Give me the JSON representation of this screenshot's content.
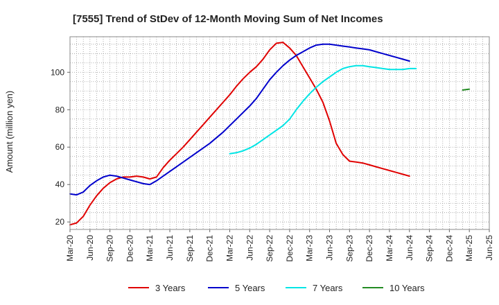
{
  "chart_data": {
    "type": "line",
    "title": "[7555]  Trend of StDev of 12-Month Moving Sum of Net Incomes",
    "ylabel": "Amount (million yen)",
    "xlabel": "",
    "ylim": [
      16,
      119
    ],
    "yticks": [
      20,
      40,
      60,
      80,
      100
    ],
    "xticks": [
      "Mar-20",
      "Jun-20",
      "Sep-20",
      "Dec-20",
      "Mar-21",
      "Jun-21",
      "Sep-21",
      "Dec-21",
      "Mar-22",
      "Jun-22",
      "Sep-22",
      "Dec-22",
      "Mar-23",
      "Jun-23",
      "Sep-23",
      "Dec-23",
      "Mar-24",
      "Jun-24",
      "Sep-24",
      "Dec-24",
      "Mar-25",
      "Jun-25"
    ],
    "grid": true,
    "legend_position": "bottom",
    "series": [
      {
        "name": "3 Years",
        "color": "#e00000",
        "start": "Mar-20",
        "values": [
          18.5,
          19.5,
          23,
          29,
          34,
          38,
          41,
          43,
          44,
          44,
          44.5,
          44,
          43,
          44,
          49,
          53,
          56.5,
          60,
          64,
          68,
          72,
          76,
          80,
          84,
          88,
          92.5,
          96.5,
          100,
          103,
          107,
          112,
          115.5,
          116,
          113,
          109,
          103,
          97,
          91,
          84,
          74,
          62,
          56,
          52.5,
          52,
          51.5,
          50.5,
          49.5,
          48.5,
          47.5,
          46.5,
          45.5,
          44.5
        ]
      },
      {
        "name": "5 Years",
        "color": "#0000cc",
        "start": "Mar-20",
        "values": [
          35,
          34.5,
          36,
          39.5,
          42,
          44,
          45,
          44.5,
          43.5,
          42.5,
          41.5,
          40.5,
          40,
          42,
          44.5,
          47,
          49.5,
          52,
          54.5,
          57,
          59.5,
          62,
          65,
          68,
          71.5,
          75,
          78.5,
          82,
          86,
          91,
          96,
          100,
          103.5,
          106.5,
          109,
          111,
          113,
          114.5,
          115,
          115,
          114.5,
          114,
          113.5,
          113,
          112.5,
          112,
          111,
          110,
          109,
          108,
          107,
          106
        ]
      },
      {
        "name": "7 Years",
        "color": "#00e5e5",
        "start": "Mar-22",
        "values": [
          56.5,
          57,
          58,
          59.5,
          61.5,
          64,
          66.5,
          69,
          71.5,
          75,
          80,
          84.5,
          88.5,
          92,
          95,
          97.5,
          100,
          102,
          103,
          103.5,
          103.5,
          103,
          102.5,
          102,
          101.5,
          101.5,
          101.5,
          102,
          102
        ]
      },
      {
        "name": "10 Years",
        "color": "#228b22",
        "start": "Feb-25",
        "values": [
          90.5,
          91
        ]
      }
    ]
  }
}
